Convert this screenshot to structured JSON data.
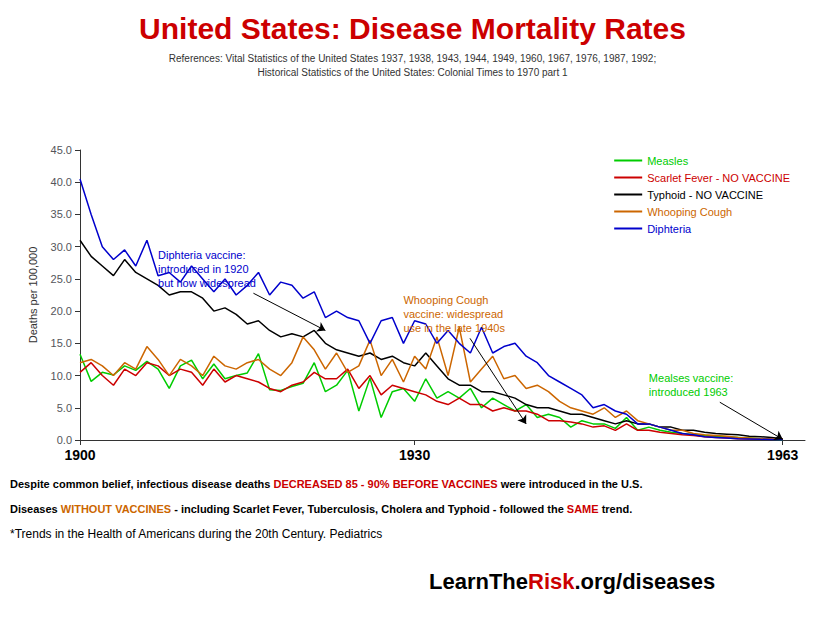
{
  "chart_data": {
    "type": "line",
    "title": "United States: Disease Mortality Rates",
    "title_color": "#CC0000",
    "subtitle": [
      "References: Vital Statistics of the United States 1937, 1938, 1943, 1944, 1949, 1960, 1967, 1976, 1987, 1992;",
      "Historical Statistics of the United States: Colonial Times to 1970 part 1"
    ],
    "y_label": "Deaths per 100,000",
    "x": [
      1900,
      1901,
      1902,
      1903,
      1904,
      1905,
      1906,
      1907,
      1908,
      1909,
      1910,
      1911,
      1912,
      1913,
      1914,
      1915,
      1916,
      1917,
      1918,
      1919,
      1920,
      1921,
      1922,
      1923,
      1924,
      1925,
      1926,
      1927,
      1928,
      1929,
      1930,
      1931,
      1932,
      1933,
      1934,
      1935,
      1936,
      1937,
      1938,
      1939,
      1940,
      1941,
      1942,
      1943,
      1944,
      1945,
      1946,
      1947,
      1948,
      1949,
      1950,
      1951,
      1952,
      1953,
      1954,
      1955,
      1956,
      1957,
      1958,
      1959,
      1960,
      1961,
      1962,
      1963
    ],
    "series": [
      {
        "name": "Measles",
        "color": "#00CC00",
        "values": [
          13.3,
          9.1,
          10.5,
          10.1,
          11.5,
          10.8,
          12.2,
          11.0,
          8.0,
          11.5,
          12.4,
          9.5,
          11.8,
          9.5,
          10.0,
          10.4,
          13.4,
          7.8,
          7.7,
          8.3,
          8.8,
          12.0,
          7.5,
          8.5,
          10.8,
          4.5,
          9.6,
          3.5,
          7.5,
          8.0,
          6.0,
          9.5,
          6.5,
          7.5,
          6.5,
          8.0,
          5.0,
          6.5,
          5.5,
          4.5,
          5.5,
          3.5,
          4.0,
          3.5,
          2.0,
          3.0,
          2.5,
          2.5,
          1.8,
          3.5,
          1.5,
          2.0,
          1.5,
          1.2,
          1.0,
          0.8,
          0.7,
          0.6,
          0.5,
          0.4,
          0.3,
          0.2,
          0.1,
          0.05
        ]
      },
      {
        "name": "Scarlet Fever - NO VACCINE",
        "color": "#CC0000",
        "values": [
          10.5,
          12.0,
          10.0,
          8.5,
          11.0,
          10.0,
          12.0,
          11.5,
          10.0,
          11.0,
          10.5,
          8.5,
          11.0,
          9.0,
          10.0,
          9.5,
          9.0,
          8.0,
          7.5,
          8.5,
          9.0,
          10.5,
          9.5,
          9.5,
          11.0,
          8.0,
          10.0,
          7.0,
          8.5,
          8.0,
          7.5,
          7.0,
          6.0,
          5.5,
          6.5,
          5.5,
          5.5,
          4.5,
          5.0,
          4.5,
          4.5,
          4.0,
          3.0,
          3.0,
          2.8,
          2.5,
          2.0,
          2.2,
          1.5,
          2.5,
          1.5,
          1.5,
          1.2,
          1.0,
          0.8,
          0.7,
          0.5,
          0.4,
          0.3,
          0.2,
          0.15,
          0.1,
          0.1,
          0.1
        ]
      },
      {
        "name": "Typhoid - NO VACCINE",
        "color": "#000000",
        "values": [
          31.0,
          28.5,
          27.0,
          25.5,
          28.0,
          26.0,
          25.0,
          24.0,
          22.5,
          23.0,
          23.0,
          22.0,
          20.0,
          20.5,
          19.5,
          18.0,
          18.5,
          17.0,
          16.0,
          16.5,
          16.0,
          17.0,
          15.0,
          14.0,
          13.5,
          13.0,
          13.5,
          12.5,
          13.0,
          12.0,
          11.5,
          13.5,
          11.5,
          9.5,
          8.5,
          8.5,
          7.5,
          7.5,
          7.0,
          6.5,
          5.5,
          5.0,
          5.0,
          4.5,
          4.0,
          4.0,
          3.5,
          3.0,
          2.5,
          3.0,
          2.5,
          2.5,
          2.0,
          2.0,
          1.5,
          1.5,
          1.2,
          1.0,
          0.9,
          0.8,
          0.6,
          0.5,
          0.4,
          0.2
        ]
      },
      {
        "name": "Whooping Cough",
        "color": "#CC6600",
        "values": [
          12.0,
          12.5,
          11.5,
          10.0,
          12.0,
          11.0,
          14.5,
          12.5,
          10.0,
          12.5,
          11.5,
          10.0,
          13.0,
          11.5,
          11.0,
          12.0,
          12.5,
          11.0,
          10.0,
          12.0,
          16.0,
          14.0,
          11.0,
          13.5,
          10.5,
          11.5,
          15.5,
          10.0,
          12.5,
          9.0,
          13.0,
          11.0,
          16.0,
          10.0,
          17.5,
          9.0,
          11.0,
          13.0,
          9.5,
          10.0,
          8.0,
          8.5,
          7.5,
          6.0,
          5.0,
          4.5,
          4.0,
          5.0,
          3.5,
          4.5,
          3.0,
          2.5,
          2.0,
          1.5,
          1.5,
          1.0,
          0.8,
          0.7,
          0.6,
          0.4,
          0.3,
          0.2,
          0.15,
          0.1
        ]
      },
      {
        "name": "Diphteria",
        "color": "#0000CC",
        "values": [
          40.5,
          35.0,
          30.0,
          28.0,
          29.5,
          27.0,
          31.0,
          25.5,
          26.0,
          24.5,
          27.0,
          25.0,
          23.0,
          25.0,
          22.5,
          24.0,
          26.0,
          22.5,
          24.5,
          24.0,
          22.0,
          23.0,
          19.0,
          20.0,
          19.0,
          18.5,
          15.0,
          18.5,
          19.0,
          15.0,
          18.5,
          18.0,
          15.0,
          17.0,
          15.0,
          13.5,
          17.5,
          13.5,
          14.5,
          15.0,
          13.0,
          12.0,
          10.0,
          9.0,
          8.0,
          7.0,
          5.0,
          5.5,
          4.5,
          4.0,
          2.5,
          2.5,
          2.0,
          1.5,
          1.0,
          0.8,
          0.5,
          0.4,
          0.3,
          0.2,
          0.15,
          0.1,
          0.08,
          0.05
        ]
      }
    ],
    "xlim": [
      1900,
      1965
    ],
    "ylim": [
      0.0,
      45.0
    ],
    "xticks": [
      1900,
      1930,
      1963
    ],
    "yticks": [
      {
        "value": 0,
        "label": "0.0"
      },
      {
        "value": 5,
        "label": "5.0"
      },
      {
        "value": 10,
        "label": "10.0"
      },
      {
        "value": 15,
        "label": "15.0"
      },
      {
        "value": 20,
        "label": "20.0"
      },
      {
        "value": 25,
        "label": "25.0"
      },
      {
        "value": 30,
        "label": "30.0"
      },
      {
        "value": 35,
        "label": "35.0"
      },
      {
        "value": 40,
        "label": "40.0"
      },
      {
        "value": 45,
        "label": "45.0"
      }
    ],
    "grid": false,
    "legend": "upper right",
    "annotations": [
      {
        "text": "Diphteria vaccine:\nintroduced in 1920\nbut now widespread",
        "xy": [
          1922,
          17.0
        ],
        "xytext": [
          1907,
          26.5
        ],
        "color": "#0000CC"
      },
      {
        "text": "Whooping Cough\nvaccine: widespread\nuse in the late 1940s",
        "xy": [
          1940,
          2.5
        ],
        "xytext": [
          1929,
          19.5
        ],
        "color": "#CC6600"
      },
      {
        "text": "Mealses vaccine:\nintroduced 1963",
        "xy": [
          1963,
          0.1
        ],
        "xytext": [
          1951,
          8.5
        ],
        "color": "#00CC00"
      }
    ],
    "notes": [
      [
        {
          "text": "Despite common belief, infectious disease deaths ",
          "color": "#000000"
        },
        {
          "text": "DECREASED 85 - 90% BEFORE VACCINES",
          "color": "#CC0000"
        },
        {
          "text": " were introduced in the U.S.",
          "color": "#000000"
        }
      ],
      [
        {
          "text": "Diseases ",
          "color": "#000000"
        },
        {
          "text": "WITHOUT VACCINES",
          "color": "#CC6600"
        },
        {
          "text": " - including Scarlet Fever, Tuberculosis, Cholera and Typhoid - followed the ",
          "color": "#000000"
        },
        {
          "text": "SAME",
          "color": "#CC0000"
        },
        {
          "text": " trend.",
          "color": "#000000"
        }
      ]
    ],
    "source": "*Trends in the Health of Americans during the 20th Century. Pediatrics",
    "brand": [
      {
        "text": "LearnThe",
        "color": "#000000"
      },
      {
        "text": "Risk",
        "color": "#CC0000"
      },
      {
        "text": ".org/diseases",
        "color": "#000000"
      }
    ]
  }
}
